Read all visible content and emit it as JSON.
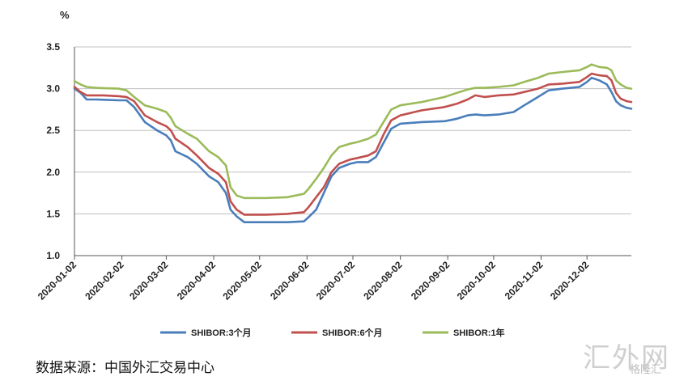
{
  "chart_data": {
    "type": "line",
    "unit_label": "%",
    "ylim": [
      1.0,
      3.5
    ],
    "yticks": [
      "1.0",
      "1.5",
      "2.0",
      "2.5",
      "3.0",
      "3.5"
    ],
    "xlim": [
      "2020-01-02",
      "2020-12-31"
    ],
    "xticks": [
      "2020-01-02",
      "2020-02-02",
      "2020-03-02",
      "2020-04-02",
      "2020-05-02",
      "2020-06-02",
      "2020-07-02",
      "2020-08-02",
      "2020-09-02",
      "2020-10-02",
      "2020-11-02",
      "2020-12-02"
    ],
    "grid": "horizontal",
    "legend_position": "bottom",
    "series": [
      {
        "name": "SHIBOR:3个月",
        "color": "#4a7ebb",
        "points": [
          [
            "2020-01-02",
            3.0
          ],
          [
            "2020-01-06",
            2.95
          ],
          [
            "2020-01-10",
            2.87
          ],
          [
            "2020-01-16",
            2.87
          ],
          [
            "2020-01-31",
            2.86
          ],
          [
            "2020-02-05",
            2.86
          ],
          [
            "2020-02-10",
            2.78
          ],
          [
            "2020-02-17",
            2.6
          ],
          [
            "2020-02-25",
            2.5
          ],
          [
            "2020-03-02",
            2.44
          ],
          [
            "2020-03-05",
            2.38
          ],
          [
            "2020-03-08",
            2.25
          ],
          [
            "2020-03-16",
            2.18
          ],
          [
            "2020-03-22",
            2.1
          ],
          [
            "2020-03-30",
            1.95
          ],
          [
            "2020-04-05",
            1.88
          ],
          [
            "2020-04-10",
            1.75
          ],
          [
            "2020-04-13",
            1.55
          ],
          [
            "2020-04-17",
            1.47
          ],
          [
            "2020-04-22",
            1.4
          ],
          [
            "2020-05-06",
            1.4
          ],
          [
            "2020-05-20",
            1.4
          ],
          [
            "2020-05-31",
            1.41
          ],
          [
            "2020-06-03",
            1.46
          ],
          [
            "2020-06-08",
            1.55
          ],
          [
            "2020-06-13",
            1.75
          ],
          [
            "2020-06-18",
            1.95
          ],
          [
            "2020-06-23",
            2.05
          ],
          [
            "2020-06-30",
            2.1
          ],
          [
            "2020-07-05",
            2.12
          ],
          [
            "2020-07-12",
            2.12
          ],
          [
            "2020-07-17",
            2.18
          ],
          [
            "2020-07-22",
            2.35
          ],
          [
            "2020-07-27",
            2.52
          ],
          [
            "2020-08-02",
            2.58
          ],
          [
            "2020-08-16",
            2.6
          ],
          [
            "2020-08-31",
            2.61
          ],
          [
            "2020-09-08",
            2.64
          ],
          [
            "2020-09-15",
            2.68
          ],
          [
            "2020-09-20",
            2.69
          ],
          [
            "2020-09-26",
            2.68
          ],
          [
            "2020-10-05",
            2.69
          ],
          [
            "2020-10-15",
            2.72
          ],
          [
            "2020-10-22",
            2.8
          ],
          [
            "2020-10-31",
            2.9
          ],
          [
            "2020-11-07",
            2.98
          ],
          [
            "2020-11-16",
            3.0
          ],
          [
            "2020-11-27",
            3.02
          ],
          [
            "2020-12-02",
            3.08
          ],
          [
            "2020-12-05",
            3.13
          ],
          [
            "2020-12-10",
            3.1
          ],
          [
            "2020-12-15",
            3.05
          ],
          [
            "2020-12-18",
            2.96
          ],
          [
            "2020-12-21",
            2.85
          ],
          [
            "2020-12-24",
            2.8
          ],
          [
            "2020-12-28",
            2.77
          ],
          [
            "2020-12-31",
            2.76
          ]
        ]
      },
      {
        "name": "SHIBOR:6个月",
        "color": "#c0504d",
        "points": [
          [
            "2020-01-02",
            3.02
          ],
          [
            "2020-01-06",
            2.96
          ],
          [
            "2020-01-10",
            2.92
          ],
          [
            "2020-01-21",
            2.92
          ],
          [
            "2020-01-31",
            2.91
          ],
          [
            "2020-02-05",
            2.9
          ],
          [
            "2020-02-10",
            2.85
          ],
          [
            "2020-02-17",
            2.68
          ],
          [
            "2020-02-25",
            2.6
          ],
          [
            "2020-03-02",
            2.55
          ],
          [
            "2020-03-05",
            2.5
          ],
          [
            "2020-03-08",
            2.4
          ],
          [
            "2020-03-16",
            2.3
          ],
          [
            "2020-03-22",
            2.2
          ],
          [
            "2020-03-30",
            2.05
          ],
          [
            "2020-04-05",
            1.98
          ],
          [
            "2020-04-10",
            1.88
          ],
          [
            "2020-04-13",
            1.65
          ],
          [
            "2020-04-17",
            1.55
          ],
          [
            "2020-04-22",
            1.49
          ],
          [
            "2020-05-06",
            1.49
          ],
          [
            "2020-05-20",
            1.5
          ],
          [
            "2020-05-31",
            1.52
          ],
          [
            "2020-06-03",
            1.58
          ],
          [
            "2020-06-08",
            1.7
          ],
          [
            "2020-06-13",
            1.82
          ],
          [
            "2020-06-18",
            2.0
          ],
          [
            "2020-06-23",
            2.1
          ],
          [
            "2020-06-30",
            2.15
          ],
          [
            "2020-07-05",
            2.17
          ],
          [
            "2020-07-12",
            2.2
          ],
          [
            "2020-07-17",
            2.25
          ],
          [
            "2020-07-22",
            2.45
          ],
          [
            "2020-07-27",
            2.62
          ],
          [
            "2020-08-02",
            2.68
          ],
          [
            "2020-08-16",
            2.74
          ],
          [
            "2020-08-31",
            2.78
          ],
          [
            "2020-09-08",
            2.82
          ],
          [
            "2020-09-15",
            2.87
          ],
          [
            "2020-09-20",
            2.92
          ],
          [
            "2020-09-26",
            2.9
          ],
          [
            "2020-10-05",
            2.92
          ],
          [
            "2020-10-15",
            2.93
          ],
          [
            "2020-10-22",
            2.96
          ],
          [
            "2020-10-31",
            3.0
          ],
          [
            "2020-11-07",
            3.05
          ],
          [
            "2020-11-16",
            3.06
          ],
          [
            "2020-11-27",
            3.08
          ],
          [
            "2020-12-02",
            3.14
          ],
          [
            "2020-12-05",
            3.18
          ],
          [
            "2020-12-10",
            3.16
          ],
          [
            "2020-12-15",
            3.15
          ],
          [
            "2020-12-18",
            3.1
          ],
          [
            "2020-12-21",
            2.95
          ],
          [
            "2020-12-24",
            2.88
          ],
          [
            "2020-12-28",
            2.85
          ],
          [
            "2020-12-31",
            2.84
          ]
        ]
      },
      {
        "name": "SHIBOR:1年",
        "color": "#9bbb59",
        "points": [
          [
            "2020-01-02",
            3.09
          ],
          [
            "2020-01-06",
            3.05
          ],
          [
            "2020-01-10",
            3.02
          ],
          [
            "2020-01-16",
            3.01
          ],
          [
            "2020-01-31",
            3.0
          ],
          [
            "2020-02-05",
            2.98
          ],
          [
            "2020-02-10",
            2.9
          ],
          [
            "2020-02-17",
            2.8
          ],
          [
            "2020-02-25",
            2.76
          ],
          [
            "2020-03-02",
            2.72
          ],
          [
            "2020-03-05",
            2.65
          ],
          [
            "2020-03-08",
            2.55
          ],
          [
            "2020-03-16",
            2.46
          ],
          [
            "2020-03-22",
            2.4
          ],
          [
            "2020-03-30",
            2.25
          ],
          [
            "2020-04-05",
            2.18
          ],
          [
            "2020-04-10",
            2.08
          ],
          [
            "2020-04-13",
            1.82
          ],
          [
            "2020-04-17",
            1.72
          ],
          [
            "2020-04-22",
            1.69
          ],
          [
            "2020-05-06",
            1.69
          ],
          [
            "2020-05-20",
            1.7
          ],
          [
            "2020-05-31",
            1.74
          ],
          [
            "2020-06-03",
            1.8
          ],
          [
            "2020-06-08",
            1.92
          ],
          [
            "2020-06-13",
            2.05
          ],
          [
            "2020-06-18",
            2.2
          ],
          [
            "2020-06-23",
            2.3
          ],
          [
            "2020-06-30",
            2.34
          ],
          [
            "2020-07-05",
            2.36
          ],
          [
            "2020-07-12",
            2.4
          ],
          [
            "2020-07-17",
            2.45
          ],
          [
            "2020-07-22",
            2.6
          ],
          [
            "2020-07-27",
            2.75
          ],
          [
            "2020-08-02",
            2.8
          ],
          [
            "2020-08-16",
            2.84
          ],
          [
            "2020-08-31",
            2.9
          ],
          [
            "2020-09-08",
            2.95
          ],
          [
            "2020-09-15",
            2.99
          ],
          [
            "2020-09-20",
            3.01
          ],
          [
            "2020-09-26",
            3.01
          ],
          [
            "2020-10-05",
            3.02
          ],
          [
            "2020-10-15",
            3.04
          ],
          [
            "2020-10-22",
            3.08
          ],
          [
            "2020-10-31",
            3.13
          ],
          [
            "2020-11-07",
            3.18
          ],
          [
            "2020-11-16",
            3.2
          ],
          [
            "2020-11-27",
            3.22
          ],
          [
            "2020-12-02",
            3.26
          ],
          [
            "2020-12-05",
            3.29
          ],
          [
            "2020-12-10",
            3.26
          ],
          [
            "2020-12-15",
            3.25
          ],
          [
            "2020-12-18",
            3.22
          ],
          [
            "2020-12-21",
            3.1
          ],
          [
            "2020-12-24",
            3.05
          ],
          [
            "2020-12-28",
            3.01
          ],
          [
            "2020-12-31",
            3.0
          ]
        ]
      }
    ]
  },
  "source_text": "数据来源：中国外汇交易中心",
  "watermark": {
    "main": "汇外网",
    "sub": "格隆汇"
  }
}
